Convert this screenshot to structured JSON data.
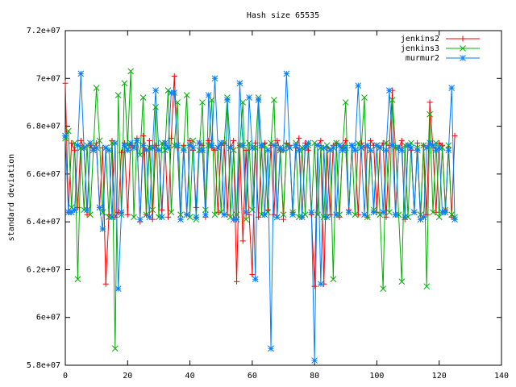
{
  "chart_data": {
    "type": "line",
    "title": "Hash size 65535",
    "ylabel": "standard deviation",
    "xlim": [
      0,
      140
    ],
    "xticks": [
      0,
      20,
      40,
      60,
      80,
      100,
      120,
      140
    ],
    "ylim": [
      58000000.0,
      72000000.0
    ],
    "yticks": [
      {
        "value": 58000000.0,
        "label": "5.8e+07"
      },
      {
        "value": 60000000.0,
        "label": "6e+07"
      },
      {
        "value": 62000000.0,
        "label": "6.2e+07"
      },
      {
        "value": 64000000.0,
        "label": "6.4e+07"
      },
      {
        "value": 66000000.0,
        "label": "6.6e+07"
      },
      {
        "value": 68000000.0,
        "label": "6.8e+07"
      },
      {
        "value": 70000000.0,
        "label": "7e+07"
      },
      {
        "value": 72000000.0,
        "label": "7.2e+07"
      }
    ],
    "grid": false,
    "legend": "top right",
    "x": [
      0,
      1,
      2,
      3,
      4,
      5,
      6,
      7,
      8,
      9,
      10,
      11,
      12,
      13,
      14,
      15,
      16,
      17,
      18,
      19,
      20,
      21,
      22,
      23,
      24,
      25,
      26,
      27,
      28,
      29,
      30,
      31,
      32,
      33,
      34,
      35,
      36,
      37,
      38,
      39,
      40,
      41,
      42,
      43,
      44,
      45,
      46,
      47,
      48,
      49,
      50,
      51,
      52,
      53,
      54,
      55,
      56,
      57,
      58,
      59,
      60,
      61,
      62,
      63,
      64,
      65,
      66,
      67,
      68,
      69,
      70,
      71,
      72,
      73,
      74,
      75,
      76,
      77,
      78,
      79,
      80,
      81,
      82,
      83,
      84,
      85,
      86,
      87,
      88,
      89,
      90,
      91,
      92,
      93,
      94,
      95,
      96,
      97,
      98,
      99,
      100,
      101,
      102,
      103,
      104,
      105,
      106,
      107,
      108,
      109,
      110,
      111,
      112,
      113,
      114,
      115,
      116,
      117,
      118,
      119,
      120,
      121,
      122,
      123,
      124,
      125
    ],
    "series": [
      {
        "name": "jenkins2",
        "color": "#ff0000",
        "marker": "plus",
        "values": [
          69800000.0,
          64400000.0,
          67300000.0,
          67000000.0,
          64600000.0,
          67400000.0,
          67100000.0,
          64300000.0,
          67200000.0,
          67000000.0,
          67300000.0,
          64600000.0,
          67100000.0,
          61400000.0,
          64300000.0,
          67400000.0,
          64200000.0,
          64400000.0,
          66900000.0,
          67300000.0,
          64300000.0,
          67200000.0,
          67100000.0,
          67500000.0,
          64000000.0,
          67600000.0,
          64300000.0,
          67400000.0,
          64100000.0,
          67200000.0,
          67000000.0,
          64500000.0,
          67300000.0,
          64200000.0,
          67500000.0,
          70100000.0,
          67100000.0,
          64100000.0,
          67200000.0,
          64300000.0,
          67400000.0,
          67000000.0,
          64600000.0,
          67300000.0,
          67200000.0,
          64200000.0,
          67400000.0,
          67100000.0,
          67000000.0,
          64400000.0,
          67200000.0,
          67300000.0,
          64300000.0,
          67100000.0,
          67400000.0,
          61500000.0,
          67200000.0,
          63200000.0,
          67000000.0,
          64300000.0,
          61800000.0,
          67300000.0,
          64200000.0,
          67100000.0,
          67300000.0,
          64500000.0,
          67200000.0,
          64300000.0,
          67400000.0,
          67000000.0,
          64100000.0,
          67300000.0,
          67200000.0,
          64400000.0,
          67100000.0,
          67500000.0,
          64200000.0,
          67300000.0,
          67000000.0,
          64300000.0,
          61300000.0,
          67200000.0,
          67400000.0,
          61400000.0,
          67100000.0,
          64300000.0,
          67200000.0,
          67300000.0,
          64200000.0,
          67100000.0,
          67400000.0,
          64500000.0,
          67200000.0,
          67000000.0,
          64300000.0,
          67300000.0,
          67100000.0,
          64200000.0,
          67400000.0,
          67200000.0,
          64400000.0,
          67100000.0,
          67300000.0,
          64200000.0,
          67200000.0,
          69500000.0,
          64300000.0,
          67100000.0,
          67400000.0,
          64100000.0,
          67200000.0,
          67000000.0,
          64400000.0,
          67300000.0,
          64100000.0,
          67200000.0,
          64300000.0,
          69000000.0,
          67100000.0,
          64400000.0,
          67300000.0,
          67200000.0,
          64500000.0,
          67100000.0,
          64200000.0,
          67600000.0
        ]
      },
      {
        "name": "jenkins3",
        "color": "#00b000",
        "marker": "cross",
        "values": [
          67500000.0,
          67800000.0,
          64600000.0,
          67300000.0,
          61600000.0,
          67100000.0,
          64500000.0,
          67200000.0,
          64300000.0,
          67000000.0,
          69600000.0,
          67400000.0,
          64400000.0,
          67100000.0,
          64200000.0,
          67300000.0,
          58700000.0,
          69300000.0,
          64300000.0,
          69800000.0,
          67200000.0,
          70300000.0,
          64200000.0,
          67400000.0,
          66800000.0,
          69200000.0,
          64300000.0,
          67100000.0,
          64500000.0,
          68800000.0,
          64200000.0,
          67300000.0,
          67000000.0,
          69500000.0,
          64400000.0,
          67200000.0,
          69000000.0,
          64300000.0,
          67100000.0,
          69300000.0,
          64200000.0,
          67400000.0,
          64100000.0,
          67000000.0,
          69000000.0,
          64500000.0,
          67200000.0,
          69100000.0,
          64300000.0,
          67100000.0,
          64400000.0,
          67300000.0,
          69200000.0,
          64200000.0,
          67000000.0,
          64300000.0,
          67200000.0,
          69000000.0,
          64100000.0,
          67300000.0,
          64500000.0,
          67100000.0,
          69200000.0,
          64300000.0,
          67200000.0,
          64400000.0,
          67300000.0,
          69100000.0,
          64200000.0,
          67000000.0,
          64300000.0,
          67200000.0,
          67100000.0,
          64400000.0,
          67300000.0,
          64200000.0,
          67100000.0,
          64300000.0,
          67200000.0,
          64400000.0,
          67300000.0,
          64300000.0,
          67100000.0,
          64200000.0,
          67200000.0,
          67000000.0,
          61600000.0,
          67300000.0,
          64300000.0,
          67100000.0,
          69000000.0,
          64400000.0,
          67200000.0,
          64300000.0,
          67300000.0,
          67100000.0,
          69200000.0,
          64200000.0,
          67000000.0,
          64500000.0,
          67200000.0,
          64300000.0,
          61200000.0,
          67300000.0,
          64400000.0,
          69100000.0,
          67100000.0,
          64300000.0,
          61500000.0,
          67200000.0,
          64200000.0,
          67300000.0,
          64400000.0,
          67100000.0,
          64300000.0,
          67200000.0,
          61300000.0,
          68500000.0,
          64400000.0,
          67300000.0,
          64200000.0,
          67100000.0,
          64500000.0,
          67200000.0,
          64300000.0,
          64200000.0
        ]
      },
      {
        "name": "murmur2",
        "color": "#0080ff",
        "marker": "star",
        "values": [
          67600000.0,
          64400000.0,
          64400000.0,
          64500000.0,
          67200000.0,
          70200000.0,
          67100000.0,
          64500000.0,
          67300000.0,
          67000000.0,
          67100000.0,
          64600000.0,
          63700000.0,
          67100000.0,
          67000000.0,
          64200000.0,
          67300000.0,
          61200000.0,
          64400000.0,
          67200000.0,
          67000000.0,
          67300000.0,
          67100000.0,
          67400000.0,
          64100000.0,
          67200000.0,
          67000000.0,
          64200000.0,
          67100000.0,
          69500000.0,
          67000000.0,
          64200000.0,
          67300000.0,
          67100000.0,
          69400000.0,
          69400000.0,
          67200000.0,
          64100000.0,
          67000000.0,
          64300000.0,
          67200000.0,
          67100000.0,
          64200000.0,
          67300000.0,
          67000000.0,
          64300000.0,
          69300000.0,
          67200000.0,
          70000000.0,
          67100000.0,
          67300000.0,
          64300000.0,
          69100000.0,
          67100000.0,
          64100000.0,
          64100000.0,
          69800000.0,
          67200000.0,
          64400000.0,
          69200000.0,
          67100000.0,
          61600000.0,
          69100000.0,
          67200000.0,
          64300000.0,
          67000000.0,
          58700000.0,
          67200000.0,
          64200000.0,
          67100000.0,
          67000000.0,
          70200000.0,
          67100000.0,
          64300000.0,
          67200000.0,
          67000000.0,
          64200000.0,
          67100000.0,
          67300000.0,
          64400000.0,
          58200000.0,
          67200000.0,
          61400000.0,
          67100000.0,
          64200000.0,
          67000000.0,
          67100000.0,
          64300000.0,
          67200000.0,
          67000000.0,
          67100000.0,
          64400000.0,
          67200000.0,
          67000000.0,
          69700000.0,
          67100000.0,
          64300000.0,
          67200000.0,
          67000000.0,
          64400000.0,
          67200000.0,
          67100000.0,
          64400000.0,
          67000000.0,
          69500000.0,
          67200000.0,
          64300000.0,
          67100000.0,
          67000000.0,
          64200000.0,
          67200000.0,
          67100000.0,
          64400000.0,
          67000000.0,
          64100000.0,
          64200000.0,
          67100000.0,
          67300000.0,
          67200000.0,
          67000000.0,
          67100000.0,
          64400000.0,
          64400000.0,
          67000000.0,
          69600000.0,
          64100000.0
        ]
      }
    ]
  }
}
